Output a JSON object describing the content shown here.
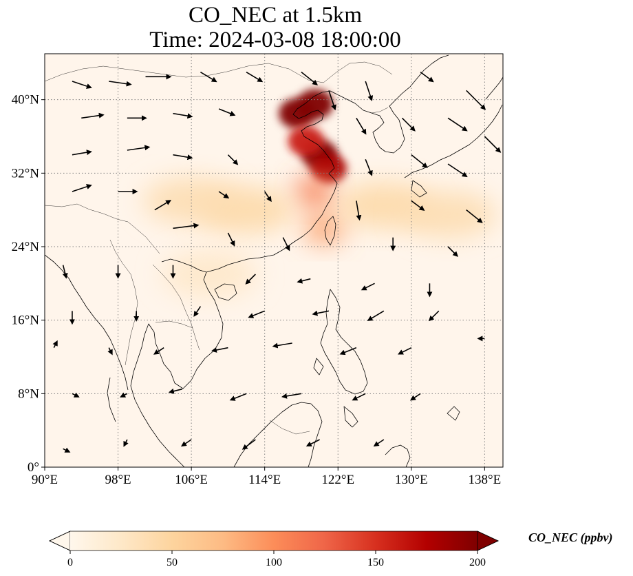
{
  "title": {
    "line1": "CO_NEC at 1.5km",
    "line2": "Time: 2024-03-08 18:00:00"
  },
  "map": {
    "projection": "PlateCarree",
    "extent": {
      "lon": [
        90,
        140
      ],
      "lat": [
        0,
        45
      ]
    },
    "gridlines": {
      "style": "dotted",
      "color": "#808080"
    },
    "lon_ticks": [
      {
        "value": 90,
        "label": "90°E"
      },
      {
        "value": 98,
        "label": "98°E"
      },
      {
        "value": 106,
        "label": "106°E"
      },
      {
        "value": 114,
        "label": "114°E"
      },
      {
        "value": 122,
        "label": "122°E"
      },
      {
        "value": 130,
        "label": "130°E"
      },
      {
        "value": 138,
        "label": "138°E"
      }
    ],
    "lat_ticks": [
      {
        "value": 0,
        "label": "0°"
      },
      {
        "value": 8,
        "label": "8°N"
      },
      {
        "value": 16,
        "label": "16°N"
      },
      {
        "value": 24,
        "label": "24°N"
      },
      {
        "value": 32,
        "label": "32°N"
      },
      {
        "value": 40,
        "label": "40°N"
      }
    ],
    "features": [
      "coastlines",
      "country borders",
      "wind vectors"
    ],
    "background_color": "#fff5eb"
  },
  "chart_data": {
    "type": "heatmap",
    "variable": "CO_NEC",
    "level": "1.5km",
    "time": "2024-03-08 18:00:00",
    "colormap": "OrRd",
    "value_range": [
      0,
      200
    ],
    "extend": "both",
    "plumes": [
      {
        "lon": 117.5,
        "lat": 38.5,
        "value": 200
      },
      {
        "lon": 119.5,
        "lat": 39.5,
        "value": 200
      },
      {
        "lon": 120.0,
        "lat": 34.0,
        "value": 200
      },
      {
        "lon": 121.0,
        "lat": 32.5,
        "value": 180
      },
      {
        "lon": 118.5,
        "lat": 35.5,
        "value": 160
      },
      {
        "lon": 119.5,
        "lat": 30.0,
        "value": 110
      },
      {
        "lon": 120.5,
        "lat": 26.0,
        "value": 90
      },
      {
        "lon": 112.0,
        "lat": 28.0,
        "value": 45
      },
      {
        "lon": 106.0,
        "lat": 29.0,
        "value": 40
      },
      {
        "lon": 127.0,
        "lat": 28.5,
        "value": 45
      },
      {
        "lon": 134.0,
        "lat": 27.5,
        "value": 40
      },
      {
        "lon": 108.0,
        "lat": 21.0,
        "value": 25
      }
    ]
  },
  "wind_field": [
    {
      "lon": 93,
      "lat": 42,
      "u": 6,
      "v": -2
    },
    {
      "lon": 97,
      "lat": 42,
      "u": 7,
      "v": -1
    },
    {
      "lon": 101,
      "lat": 42.5,
      "u": 8,
      "v": 0
    },
    {
      "lon": 107,
      "lat": 43,
      "u": 5,
      "v": -3
    },
    {
      "lon": 112,
      "lat": 43,
      "u": 5,
      "v": -3
    },
    {
      "lon": 118,
      "lat": 43,
      "u": 5,
      "v": -4
    },
    {
      "lon": 121,
      "lat": 41,
      "u": 2,
      "v": -6
    },
    {
      "lon": 125,
      "lat": 42,
      "u": 2,
      "v": -6
    },
    {
      "lon": 131,
      "lat": 43,
      "u": 4,
      "v": -3
    },
    {
      "lon": 136,
      "lat": 41,
      "u": 6,
      "v": -6
    },
    {
      "lon": 94,
      "lat": 38,
      "u": 7,
      "v": 1
    },
    {
      "lon": 99,
      "lat": 38,
      "u": 6,
      "v": 0
    },
    {
      "lon": 104,
      "lat": 38.5,
      "u": 6,
      "v": -1
    },
    {
      "lon": 109,
      "lat": 39,
      "u": 5,
      "v": -2
    },
    {
      "lon": 124,
      "lat": 38,
      "u": 3,
      "v": -5
    },
    {
      "lon": 129,
      "lat": 38,
      "u": 4,
      "v": -4
    },
    {
      "lon": 134,
      "lat": 38,
      "u": 6,
      "v": -4
    },
    {
      "lon": 138,
      "lat": 36,
      "u": 5,
      "v": -5
    },
    {
      "lon": 93,
      "lat": 34,
      "u": 6,
      "v": 1
    },
    {
      "lon": 99,
      "lat": 34.5,
      "u": 7,
      "v": 1
    },
    {
      "lon": 104,
      "lat": 34,
      "u": 6,
      "v": -1
    },
    {
      "lon": 110,
      "lat": 34,
      "u": 3,
      "v": -3
    },
    {
      "lon": 125,
      "lat": 33.5,
      "u": 2,
      "v": -5
    },
    {
      "lon": 130,
      "lat": 34,
      "u": 5,
      "v": -4
    },
    {
      "lon": 134,
      "lat": 33,
      "u": 6,
      "v": -4
    },
    {
      "lon": 93,
      "lat": 30,
      "u": 6,
      "v": 2
    },
    {
      "lon": 98,
      "lat": 30,
      "u": 6,
      "v": 0
    },
    {
      "lon": 102,
      "lat": 28,
      "u": 5,
      "v": 3
    },
    {
      "lon": 109,
      "lat": 30,
      "u": 3,
      "v": -2
    },
    {
      "lon": 114,
      "lat": 30,
      "u": 2,
      "v": -3
    },
    {
      "lon": 124,
      "lat": 29,
      "u": 1,
      "v": -6
    },
    {
      "lon": 130,
      "lat": 29,
      "u": 4,
      "v": -3
    },
    {
      "lon": 136,
      "lat": 28,
      "u": 5,
      "v": -4
    },
    {
      "lon": 104,
      "lat": 26,
      "u": 8,
      "v": 1
    },
    {
      "lon": 110,
      "lat": 25.5,
      "u": 2,
      "v": -4
    },
    {
      "lon": 116,
      "lat": 25,
      "u": 2,
      "v": -4
    },
    {
      "lon": 128,
      "lat": 25,
      "u": 0,
      "v": -4
    },
    {
      "lon": 134,
      "lat": 24,
      "u": 3,
      "v": -3
    },
    {
      "lon": 92,
      "lat": 22,
      "u": 1,
      "v": -4
    },
    {
      "lon": 98,
      "lat": 22,
      "u": 0,
      "v": -4
    },
    {
      "lon": 104,
      "lat": 22,
      "u": 0,
      "v": -4
    },
    {
      "lon": 113,
      "lat": 21,
      "u": -3,
      "v": -3
    },
    {
      "lon": 119,
      "lat": 20.5,
      "u": -4,
      "v": -1
    },
    {
      "lon": 126,
      "lat": 20,
      "u": -4,
      "v": -2
    },
    {
      "lon": 132,
      "lat": 20,
      "u": 0,
      "v": -4
    },
    {
      "lon": 93,
      "lat": 17,
      "u": 0,
      "v": -4
    },
    {
      "lon": 100,
      "lat": 17,
      "u": 0,
      "v": -3
    },
    {
      "lon": 107,
      "lat": 17.5,
      "u": -2,
      "v": -3
    },
    {
      "lon": 114,
      "lat": 17,
      "u": -5,
      "v": -2
    },
    {
      "lon": 121,
      "lat": 17,
      "u": -5,
      "v": -1
    },
    {
      "lon": 127,
      "lat": 17,
      "u": -5,
      "v": -3
    },
    {
      "lon": 133,
      "lat": 17,
      "u": -3,
      "v": -3
    },
    {
      "lon": 138,
      "lat": 14,
      "u": -2,
      "v": 0
    },
    {
      "lon": 91,
      "lat": 13,
      "u": 1,
      "v": 2
    },
    {
      "lon": 97,
      "lat": 13,
      "u": 1,
      "v": -2
    },
    {
      "lon": 103,
      "lat": 13,
      "u": -3,
      "v": -2
    },
    {
      "lon": 110,
      "lat": 13,
      "u": -5,
      "v": -1
    },
    {
      "lon": 117,
      "lat": 13.5,
      "u": -6,
      "v": -1
    },
    {
      "lon": 124,
      "lat": 13,
      "u": -5,
      "v": -2
    },
    {
      "lon": 130,
      "lat": 13,
      "u": -4,
      "v": -2
    },
    {
      "lon": 93,
      "lat": 8,
      "u": 2,
      "v": -1
    },
    {
      "lon": 99,
      "lat": 8,
      "u": -2,
      "v": -1
    },
    {
      "lon": 105,
      "lat": 8.5,
      "u": -4,
      "v": -1
    },
    {
      "lon": 112,
      "lat": 8,
      "u": -5,
      "v": -2
    },
    {
      "lon": 118,
      "lat": 8,
      "u": -6,
      "v": -1
    },
    {
      "lon": 125,
      "lat": 8,
      "u": -4,
      "v": -2
    },
    {
      "lon": 131,
      "lat": 8,
      "u": -3,
      "v": -2
    },
    {
      "lon": 92,
      "lat": 2,
      "u": 2,
      "v": -1
    },
    {
      "lon": 99,
      "lat": 3,
      "u": -1,
      "v": -2
    },
    {
      "lon": 106,
      "lat": 3,
      "u": -3,
      "v": -2
    },
    {
      "lon": 113,
      "lat": 3,
      "u": -4,
      "v": -3
    },
    {
      "lon": 120,
      "lat": 3,
      "u": -4,
      "v": -2
    },
    {
      "lon": 127,
      "lat": 3,
      "u": -3,
      "v": -2
    }
  ],
  "colorbar": {
    "title": "CO_NEC (ppbv)",
    "ticks": [
      {
        "value": 0,
        "label": "0"
      },
      {
        "value": 50,
        "label": "50"
      },
      {
        "value": 100,
        "label": "100"
      },
      {
        "value": 150,
        "label": "150"
      },
      {
        "value": 200,
        "label": "200"
      }
    ],
    "stops": [
      "#fff7ec",
      "#fee8c8",
      "#fdd49e",
      "#fdbb84",
      "#fc8d59",
      "#ef6548",
      "#d7301f",
      "#b30000",
      "#7f0000"
    ],
    "extend_low_color": "#fff7ec",
    "extend_high_color": "#7f0000"
  }
}
